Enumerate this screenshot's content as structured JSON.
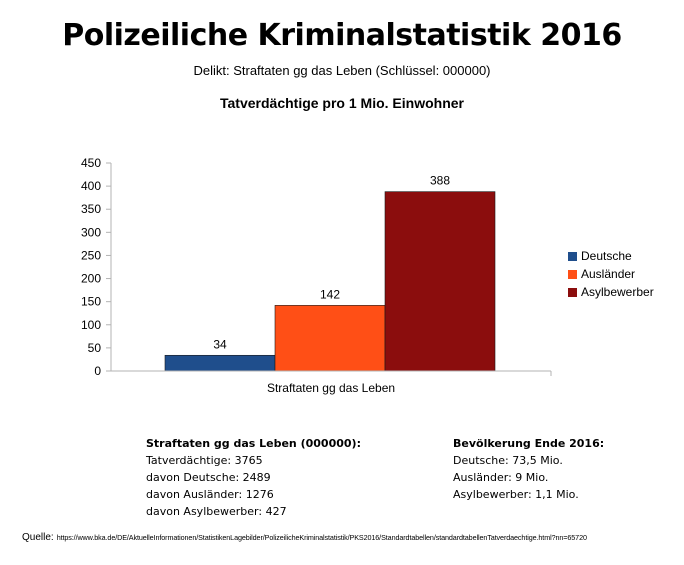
{
  "header": {
    "title": "Polizeiliche Kriminalstatistik 2016",
    "subtitle": "Delikt: Straftaten gg das Leben (Schlüssel: 000000)"
  },
  "chart_data": {
    "type": "bar",
    "title": "Tatverdächtige pro 1 Mio. Einwohner",
    "categories": [
      "Straftaten gg das Leben"
    ],
    "series": [
      {
        "name": "Deutsche",
        "values": [
          34
        ],
        "color": "#1f4e8c"
      },
      {
        "name": "Ausländer",
        "values": [
          142
        ],
        "color": "#ff4f16"
      },
      {
        "name": "Asylbewerber",
        "values": [
          388
        ],
        "color": "#8b0d0d"
      }
    ],
    "ylim": [
      0,
      450
    ],
    "yticks": [
      "0",
      "50",
      "100",
      "150",
      "200",
      "250",
      "300",
      "350",
      "400",
      "450"
    ],
    "grid": false,
    "legend": "right",
    "xlabel": "",
    "ylabel": ""
  },
  "stats_left": {
    "heading": "Straftaten gg das Leben (000000):",
    "lines": [
      "Tatverdächtige: 3765",
      "davon Deutsche: 2489",
      "davon Ausländer: 1276",
      "davon Asylbewerber: 427"
    ]
  },
  "stats_right": {
    "heading": "Bevölkerung Ende 2016:",
    "lines": [
      "Deutsche: 73,5 Mio.",
      "Ausländer: 9 Mio.",
      "Asylbewerber: 1,1 Mio."
    ]
  },
  "source": {
    "label": "Quelle:",
    "url": "https://www.bka.de/DE/AktuelleInformationen/StatistikenLagebilder/PolizeilicheKriminalstatistik/PKS2016/Standardtabellen/standardtabellenTatverdaechtige.html?nn=65720"
  }
}
